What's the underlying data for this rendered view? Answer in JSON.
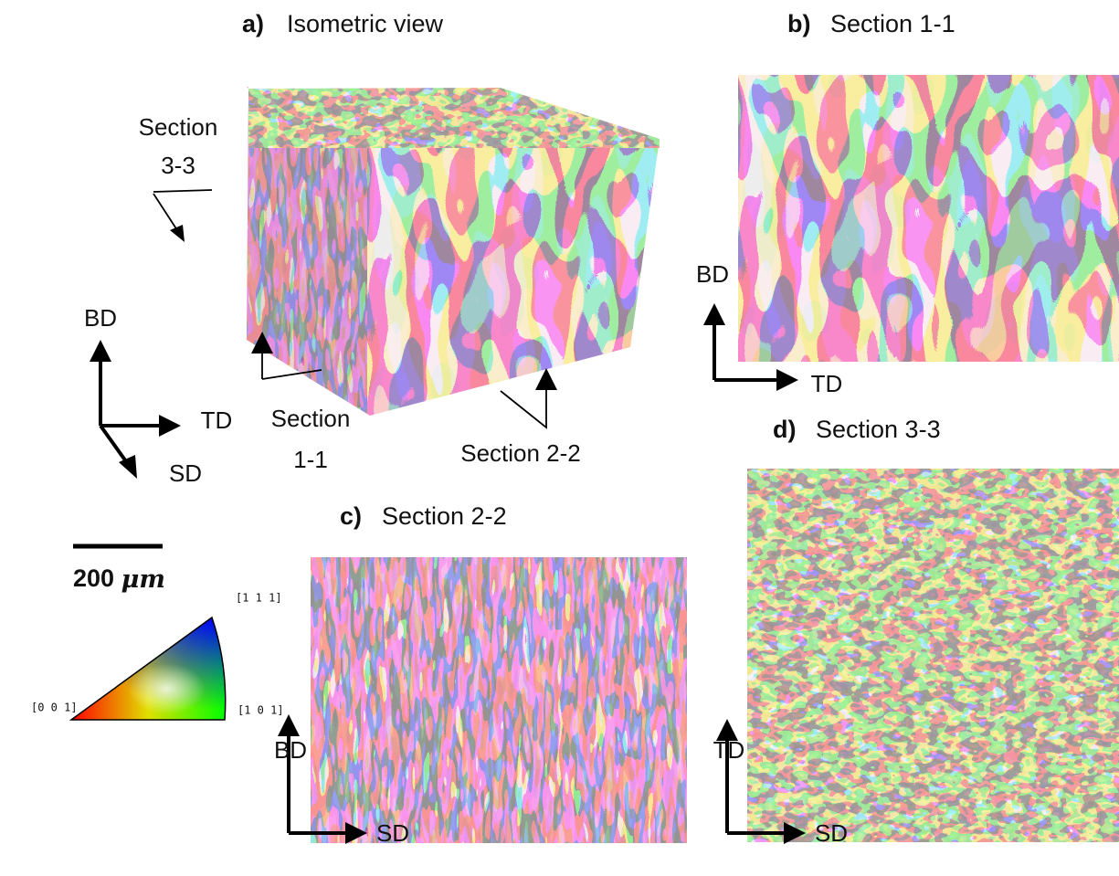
{
  "panels": {
    "a": {
      "label": "a)",
      "title": "Isometric view"
    },
    "b": {
      "label": "b)",
      "title": "Section 1-1"
    },
    "c": {
      "label": "c)",
      "title": "Section 2-2"
    },
    "d": {
      "label": "d)",
      "title": "Section 3-3"
    }
  },
  "axes": {
    "a": {
      "up": "BD",
      "right": "TD",
      "diagonal": "SD"
    },
    "b": {
      "up": "BD",
      "right": "TD"
    },
    "c": {
      "up": "BD",
      "right": "SD"
    },
    "d": {
      "up": "TD",
      "right": "SD"
    }
  },
  "annotations": {
    "section_3_3": [
      "Section",
      "3-3"
    ],
    "section_1_1": [
      "Section",
      "1-1"
    ],
    "section_2_2": "Section 2-2"
  },
  "scale_bar": {
    "value": "200",
    "unit": "μm"
  },
  "ipf": {
    "corner_111": "[1 1 1]",
    "corner_001": "[0 0 1]",
    "corner_101": "[1 0 1]"
  }
}
